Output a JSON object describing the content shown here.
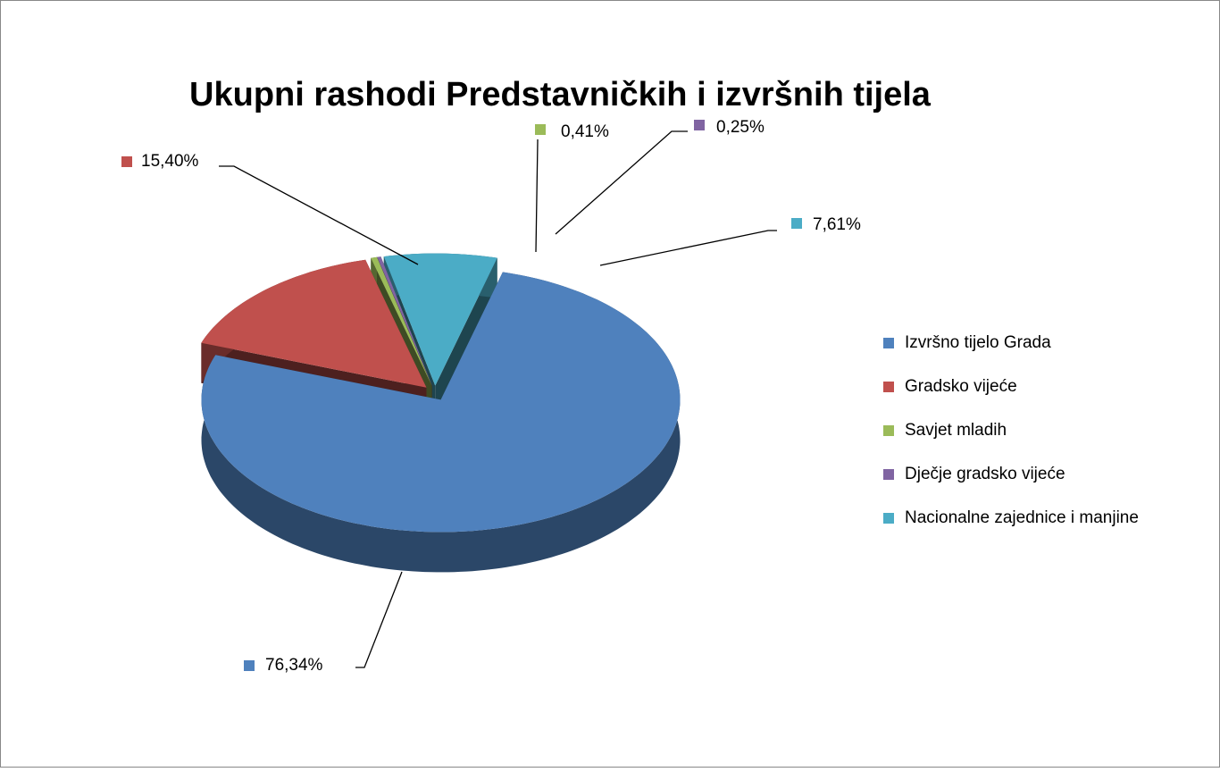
{
  "chart_data": {
    "type": "pie3d",
    "title": "Ukupni rashodi Predstavničkih i izvršnih tijela",
    "categories": [
      "Izvršno tijelo Grada",
      "Gradsko vijeće",
      "Savjet mladih",
      "Dječje gradsko vijeće",
      "Nacionalne zajednice i manjine"
    ],
    "values": [
      76.34,
      15.4,
      0.41,
      0.25,
      7.61
    ],
    "value_labels": [
      "76,34%",
      "15,40%",
      "0,41%",
      "0,25%",
      "7,61%"
    ],
    "colors": [
      "#4f81bd",
      "#c0504d",
      "#9bbb59",
      "#8064a2",
      "#4bacc6"
    ],
    "legend": "right"
  }
}
